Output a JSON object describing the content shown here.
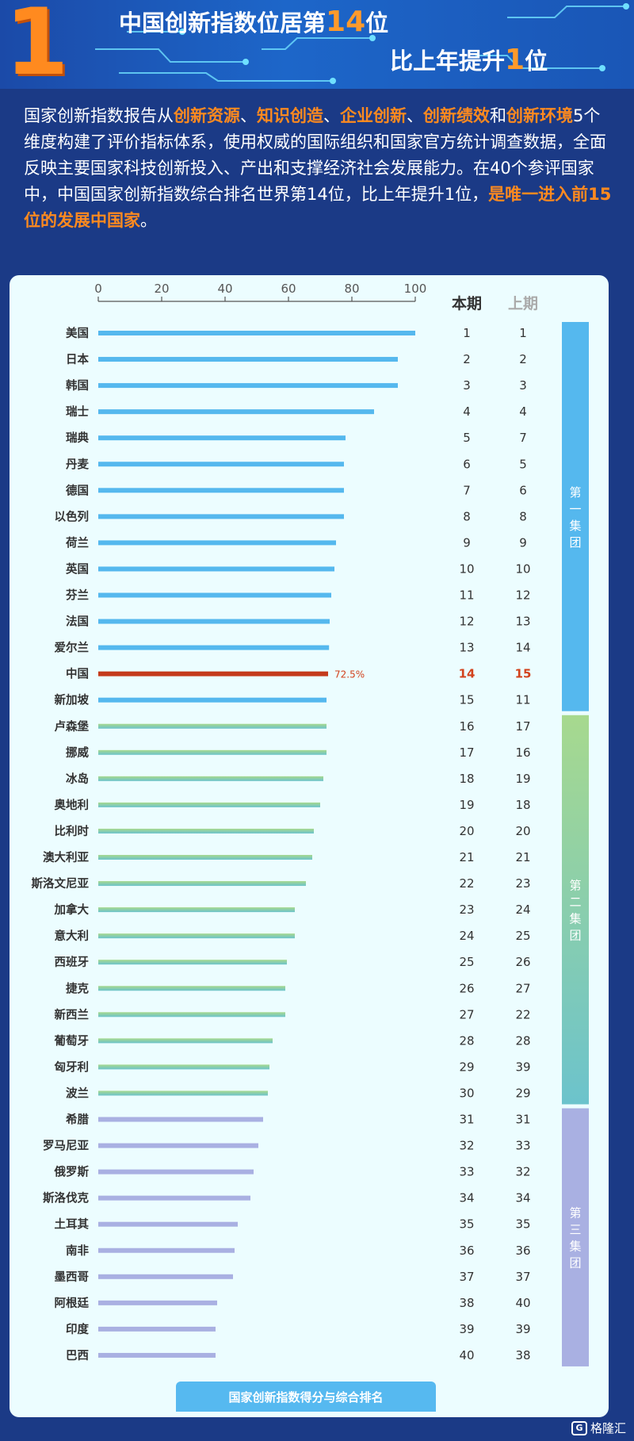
{
  "header": {
    "big_number": "1",
    "title_line1_pre": "中国创新指数位居第",
    "title_line1_num": "14",
    "title_line1_post": "位",
    "title_line2_pre": "比上年提升",
    "title_line2_num": "1",
    "title_line2_post": "位"
  },
  "intro": {
    "p1": "国家创新指数报告从",
    "k1": "创新资源",
    "p2": "、",
    "k2": "知识创造",
    "p3": "、",
    "k3": "企业创新",
    "p4": "、",
    "k4": "创新绩效",
    "p5": "和",
    "k5": "创新环境",
    "p6": "5个维度构建了评价指标体系，使用权威的国际组织和国家官方统计调查数据，全面反映主要国家科技创新投入、产出和支撑经济社会发展能力。在40个参评国家中，中国国家创新指数综合排名世界第14位，比上年提升1位，",
    "k6": "是唯一进入前15位的发展中国家",
    "p7": "。"
  },
  "chart_data": {
    "type": "bar",
    "orientation": "horizontal",
    "xlim": [
      0,
      100
    ],
    "xticks": [
      0,
      20,
      40,
      60,
      80,
      100
    ],
    "columns": {
      "current": "本期",
      "previous": "上期"
    },
    "highlight_label": "72.5%",
    "colors": {
      "group1": "#55b8ee",
      "group2_start": "#a7d98e",
      "group2_end": "#6cc3cc",
      "group3": "#a9b0e2",
      "highlight": "#c43a1b",
      "rank_text": "#333333",
      "highlight_text": "#d2421c"
    },
    "groups": [
      {
        "label": "第一集团",
        "from": 1,
        "to": 15
      },
      {
        "label": "第二集团",
        "from": 16,
        "to": 30
      },
      {
        "label": "第三集团",
        "from": 31,
        "to": 40
      }
    ],
    "rows": [
      {
        "country": "美国",
        "score": 100,
        "current": 1,
        "previous": 1
      },
      {
        "country": "日本",
        "score": 94.5,
        "current": 2,
        "previous": 2
      },
      {
        "country": "韩国",
        "score": 94.5,
        "current": 3,
        "previous": 3
      },
      {
        "country": "瑞士",
        "score": 87,
        "current": 4,
        "previous": 4
      },
      {
        "country": "瑞典",
        "score": 78,
        "current": 5,
        "previous": 7
      },
      {
        "country": "丹麦",
        "score": 77.5,
        "current": 6,
        "previous": 5
      },
      {
        "country": "德国",
        "score": 77.5,
        "current": 7,
        "previous": 6
      },
      {
        "country": "以色列",
        "score": 77.5,
        "current": 8,
        "previous": 8
      },
      {
        "country": "荷兰",
        "score": 75,
        "current": 9,
        "previous": 9
      },
      {
        "country": "英国",
        "score": 74.5,
        "current": 10,
        "previous": 10
      },
      {
        "country": "芬兰",
        "score": 73.5,
        "current": 11,
        "previous": 12
      },
      {
        "country": "法国",
        "score": 73,
        "current": 12,
        "previous": 13
      },
      {
        "country": "爱尔兰",
        "score": 72.8,
        "current": 13,
        "previous": 14
      },
      {
        "country": "中国",
        "score": 72.5,
        "current": 14,
        "previous": 15,
        "highlight": true
      },
      {
        "country": "新加坡",
        "score": 72,
        "current": 15,
        "previous": 11
      },
      {
        "country": "卢森堡",
        "score": 72,
        "current": 16,
        "previous": 17
      },
      {
        "country": "挪威",
        "score": 72,
        "current": 17,
        "previous": 16
      },
      {
        "country": "冰岛",
        "score": 71,
        "current": 18,
        "previous": 19
      },
      {
        "country": "奥地利",
        "score": 70,
        "current": 19,
        "previous": 18
      },
      {
        "country": "比利时",
        "score": 68,
        "current": 20,
        "previous": 20
      },
      {
        "country": "澳大利亚",
        "score": 67.5,
        "current": 21,
        "previous": 21
      },
      {
        "country": "斯洛文尼亚",
        "score": 65.5,
        "current": 22,
        "previous": 23
      },
      {
        "country": "加拿大",
        "score": 62,
        "current": 23,
        "previous": 24
      },
      {
        "country": "意大利",
        "score": 62,
        "current": 24,
        "previous": 25
      },
      {
        "country": "西班牙",
        "score": 59.5,
        "current": 25,
        "previous": 26
      },
      {
        "country": "捷克",
        "score": 59,
        "current": 26,
        "previous": 27
      },
      {
        "country": "新西兰",
        "score": 59,
        "current": 27,
        "previous": 22
      },
      {
        "country": "葡萄牙",
        "score": 55,
        "current": 28,
        "previous": 28
      },
      {
        "country": "匈牙利",
        "score": 54,
        "current": 29,
        "previous": 39
      },
      {
        "country": "波兰",
        "score": 53.5,
        "current": 30,
        "previous": 29
      },
      {
        "country": "希腊",
        "score": 52,
        "current": 31,
        "previous": 31
      },
      {
        "country": "罗马尼亚",
        "score": 50.5,
        "current": 32,
        "previous": 33
      },
      {
        "country": "俄罗斯",
        "score": 49,
        "current": 33,
        "previous": 32
      },
      {
        "country": "斯洛伐克",
        "score": 48,
        "current": 34,
        "previous": 34
      },
      {
        "country": "土耳其",
        "score": 44,
        "current": 35,
        "previous": 35
      },
      {
        "country": "南非",
        "score": 43,
        "current": 36,
        "previous": 36
      },
      {
        "country": "墨西哥",
        "score": 42.5,
        "current": 37,
        "previous": 37
      },
      {
        "country": "阿根廷",
        "score": 37.5,
        "current": 38,
        "previous": 40
      },
      {
        "country": "印度",
        "score": 37,
        "current": 39,
        "previous": 39
      },
      {
        "country": "巴西",
        "score": 37,
        "current": 40,
        "previous": 38
      }
    ],
    "caption": "国家创新指数得分与综合排名"
  },
  "watermark": {
    "icon_text": "G",
    "text": "格隆汇"
  }
}
